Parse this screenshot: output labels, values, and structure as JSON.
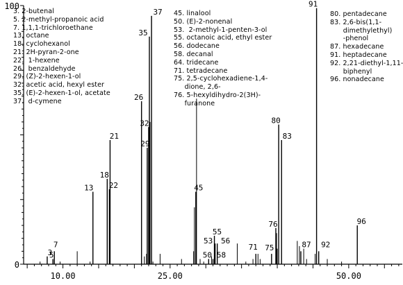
{
  "chart_data": {
    "type": "bar",
    "xlim": [
      4.5,
      57.5
    ],
    "ylim": [
      0,
      100
    ],
    "y_ticks": [
      {
        "value": 0,
        "label": "0"
      },
      {
        "value": 100,
        "label": "100"
      }
    ],
    "x_ticks": [
      {
        "value": 10.0,
        "label": "10.00"
      },
      {
        "value": 25.0,
        "label": "25.00"
      },
      {
        "value": 50.0,
        "label": "50.00"
      }
    ],
    "grid": false,
    "peaks": [
      {
        "x": 7.8,
        "y": 3,
        "label": "3"
      },
      {
        "x": 8.6,
        "y": 2,
        "label": "5"
      },
      {
        "x": 8.8,
        "y": 5,
        "label": "7"
      },
      {
        "x": 14.2,
        "y": 28,
        "label": "13"
      },
      {
        "x": 16.2,
        "y": 33,
        "label": "18"
      },
      {
        "x": 16.6,
        "y": 48,
        "label": "21"
      },
      {
        "x": 16.5,
        "y": 29,
        "label": "22"
      },
      {
        "x": 21.0,
        "y": 63,
        "label": "26"
      },
      {
        "x": 21.8,
        "y": 45,
        "label": "29"
      },
      {
        "x": 22.0,
        "y": 53,
        "label": "32"
      },
      {
        "x": 22.1,
        "y": 88,
        "label": "35"
      },
      {
        "x": 22.4,
        "y": 96,
        "label": "37"
      },
      {
        "x": 28.6,
        "y": 28,
        "label": "45"
      },
      {
        "x": 30.4,
        "y": 2,
        "label": "50"
      },
      {
        "x": 31.3,
        "y": 8,
        "label": "53"
      },
      {
        "x": 31.2,
        "y": 11,
        "label": "55"
      },
      {
        "x": 31.6,
        "y": 8,
        "label": "56"
      },
      {
        "x": 31.0,
        "y": 2,
        "label": "58"
      },
      {
        "x": 37.0,
        "y": 4,
        "label": "71"
      },
      {
        "x": 39.2,
        "y": 4,
        "label": "75"
      },
      {
        "x": 39.8,
        "y": 14,
        "label": "76"
      },
      {
        "x": 40.2,
        "y": 54,
        "label": "80"
      },
      {
        "x": 40.6,
        "y": 48,
        "label": "83"
      },
      {
        "x": 43.3,
        "y": 5,
        "label": "87"
      },
      {
        "x": 45.5,
        "y": 99,
        "label": "91"
      },
      {
        "x": 45.8,
        "y": 5,
        "label": "92"
      },
      {
        "x": 51.2,
        "y": 15,
        "label": "96"
      }
    ],
    "minor_peaks": [
      {
        "x": 6.8,
        "y": 1
      },
      {
        "x": 9.6,
        "y": 1
      },
      {
        "x": 12.0,
        "y": 5
      },
      {
        "x": 13.8,
        "y": 1
      },
      {
        "x": 21.4,
        "y": 3
      },
      {
        "x": 21.7,
        "y": 4
      },
      {
        "x": 22.2,
        "y": 55
      },
      {
        "x": 22.6,
        "y": 1
      },
      {
        "x": 23.6,
        "y": 4
      },
      {
        "x": 26.6,
        "y": 2
      },
      {
        "x": 28.3,
        "y": 5
      },
      {
        "x": 28.4,
        "y": 22
      },
      {
        "x": 28.7,
        "y": 64
      },
      {
        "x": 29.2,
        "y": 2
      },
      {
        "x": 29.7,
        "y": 1
      },
      {
        "x": 30.8,
        "y": 3
      },
      {
        "x": 34.4,
        "y": 8
      },
      {
        "x": 35.6,
        "y": 1
      },
      {
        "x": 36.6,
        "y": 2
      },
      {
        "x": 37.3,
        "y": 4
      },
      {
        "x": 37.6,
        "y": 2
      },
      {
        "x": 39.9,
        "y": 12
      },
      {
        "x": 40.0,
        "y": 6
      },
      {
        "x": 42.8,
        "y": 9
      },
      {
        "x": 43.1,
        "y": 7
      },
      {
        "x": 43.7,
        "y": 6
      },
      {
        "x": 44.1,
        "y": 2
      },
      {
        "x": 45.3,
        "y": 4
      },
      {
        "x": 47.0,
        "y": 2
      },
      {
        "x": 49.0,
        "y": 1
      }
    ],
    "legend": [
      [
        "3. 2-butenal",
        "5. 2-methyl-propanoic acid",
        "7. 1,1,1-trichloroethane",
        "13. octane",
        "18. cyclohexanol",
        "21. 2H-pyran-2-one",
        "22.  1-hexene",
        "26.  benzaldehyde",
        "29. (Z)-2-hexen-1-ol",
        "32. acetic acid, hexyl ester",
        "35. (E)-2-hexen-1-ol, acetate",
        "37.  d-cymene"
      ],
      [
        "45. linalool",
        "50. (E)-2-nonenal",
        "53.  2-methyl-1-penten-3-ol",
        "55. octanoic acid, ethyl ester",
        "56. dodecane",
        "58. decanal",
        "64. tridecane",
        "71. tetradecane",
        "75. 2,5-cyclohexadiene-1,4-",
        "     dione, 2,6-",
        "76. 5-hexyldihydro-2(3H)-",
        "     furanone"
      ],
      [
        "80. pentadecane",
        "83. 2,6-bis(1,1-",
        "      dimethylethyl)",
        "      -phenol",
        "87. hexadecane",
        "91. heptadecane",
        "92. 2,21-diethyl-1,11-",
        "      biphenyl",
        "96. nonadecane"
      ]
    ]
  }
}
